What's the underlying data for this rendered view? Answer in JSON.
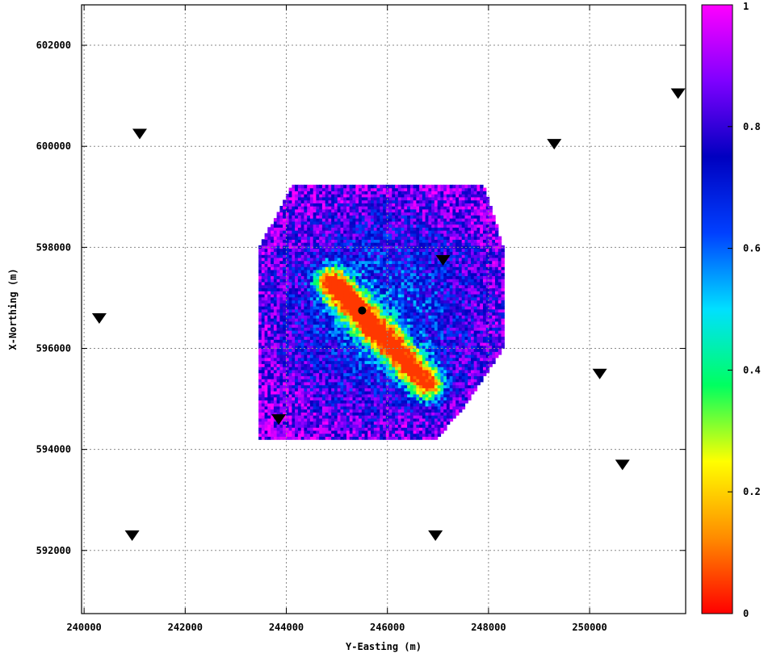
{
  "chart_data": {
    "type": "heatmap",
    "title": "",
    "xlabel": "Y-Easting (m)",
    "ylabel": "X-Northing (m)",
    "xlim": [
      239950,
      251900
    ],
    "ylim": [
      590750,
      602800
    ],
    "grid": true,
    "x_ticks": [
      240000,
      242000,
      244000,
      246000,
      248000,
      250000
    ],
    "x_tick_labels": [
      "240000",
      "242000",
      "244000",
      "246000",
      "248000",
      "250000"
    ],
    "y_ticks": [
      592000,
      594000,
      596000,
      598000,
      600000,
      602000
    ],
    "y_tick_labels": [
      "592000",
      "594000",
      "596000",
      "598000",
      "600000",
      "602000"
    ],
    "colorbar": {
      "range": [
        0,
        1
      ],
      "tick_values": [
        0,
        0.2,
        0.4,
        0.6,
        0.8,
        1
      ],
      "tick_labels": [
        "0",
        "0.2",
        "0.4",
        "0.6",
        "0.8",
        "1"
      ],
      "colormap": [
        "#ff0000",
        "#ff8c00",
        "#ffff00",
        "#00ff60",
        "#00e0ff",
        "#0040ff",
        "#0000c0",
        "#7f00ff",
        "#ff00ff"
      ]
    },
    "region_polygon": [
      [
        243450,
        598000
      ],
      [
        243900,
        598800
      ],
      [
        244100,
        599250
      ],
      [
        247900,
        599250
      ],
      [
        248300,
        598000
      ],
      [
        248300,
        596000
      ],
      [
        247500,
        594800
      ],
      [
        246950,
        594200
      ],
      [
        243450,
        594200
      ]
    ],
    "ridge": {
      "start": [
        244900,
        597300
      ],
      "end": [
        246800,
        595300
      ],
      "min_value": 0.05
    },
    "stations": [
      {
        "x": 241100,
        "y": 600250
      },
      {
        "x": 249300,
        "y": 600050
      },
      {
        "x": 251750,
        "y": 601050
      },
      {
        "x": 240300,
        "y": 596600
      },
      {
        "x": 247100,
        "y": 597750
      },
      {
        "x": 250200,
        "y": 595500
      },
      {
        "x": 243850,
        "y": 594600
      },
      {
        "x": 250650,
        "y": 593700
      },
      {
        "x": 240950,
        "y": 592300
      },
      {
        "x": 246950,
        "y": 592300
      }
    ],
    "epicenter": {
      "x": 245500,
      "y": 596750
    }
  }
}
